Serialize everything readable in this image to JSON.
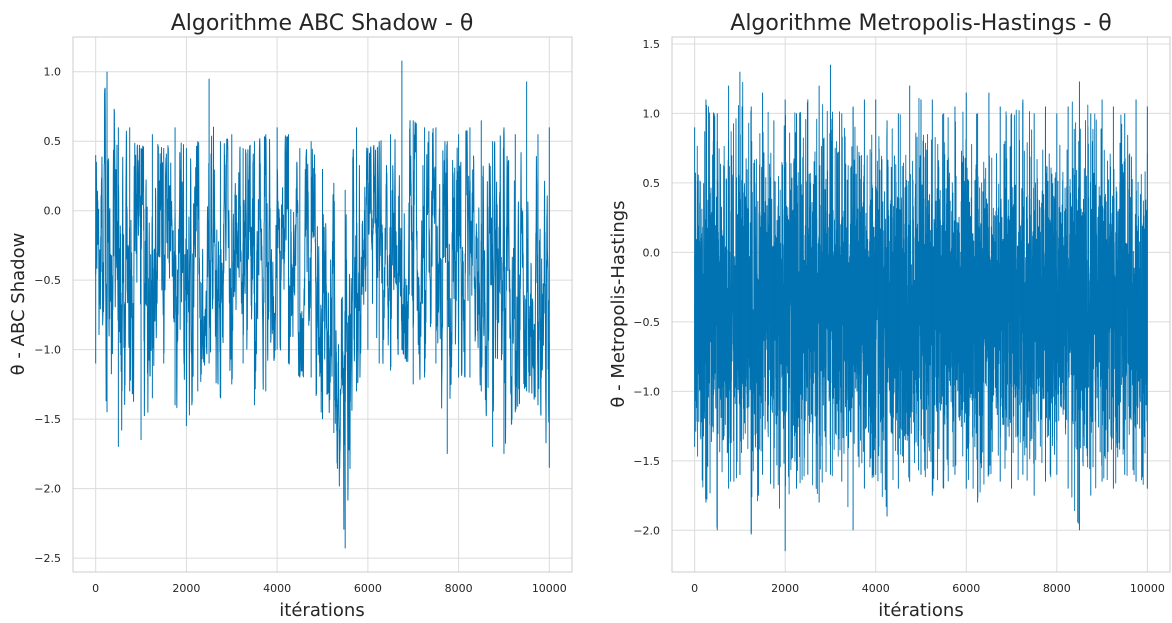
{
  "chart_data": [
    {
      "type": "line",
      "title": "Algorithme ABC Shadow - θ",
      "xlabel": "itérations",
      "ylabel": "θ - ABC Shadow",
      "xlim": [
        -500,
        10500
      ],
      "ylim": [
        -2.6,
        1.25
      ],
      "xticks": [
        0,
        2000,
        4000,
        6000,
        8000,
        10000
      ],
      "yticks": [
        -2.5,
        -2.0,
        -1.5,
        -1.0,
        -0.5,
        0.0,
        0.5,
        1.0
      ],
      "ytick_labels": [
        "−2.5",
        "−2.0",
        "−1.5",
        "−1.0",
        "−0.5",
        "0.0",
        "0.5",
        "1.0"
      ],
      "grid": true,
      "color": "#0173b2",
      "series": [
        {
          "x": [
            0,
            250,
            500,
            750,
            1000,
            1250,
            1500,
            1750,
            2000,
            2250,
            2500,
            2750,
            3000,
            3250,
            3500,
            3750,
            4000,
            4250,
            4500,
            4750,
            5000,
            5250,
            5500,
            5750,
            6000,
            6250,
            6500,
            6750,
            7000,
            7250,
            7500,
            7750,
            8000,
            8250,
            8500,
            8750,
            9000,
            9250,
            9500,
            9750,
            10000
          ],
          "y": [
            -0.3,
            -0.6,
            -0.4,
            -0.5,
            -0.2,
            -0.6,
            -0.3,
            -0.4,
            -0.5,
            -0.3,
            -0.2,
            -0.4,
            -0.3,
            -0.2,
            -0.4,
            -0.3,
            -0.1,
            -0.2,
            -0.3,
            -0.4,
            -0.6,
            -0.7,
            -0.8,
            -0.3,
            -0.2,
            -0.3,
            -0.4,
            -0.2,
            -0.3,
            -0.4,
            -0.3,
            -0.5,
            -0.3,
            -0.4,
            -0.5,
            -0.6,
            -0.7,
            -0.4,
            -0.5,
            -0.4,
            -0.6
          ],
          "ymin": [
            -1.1,
            -1.45,
            -1.7,
            -1.3,
            -1.65,
            -1.35,
            -1.1,
            -1.4,
            -1.55,
            -1.3,
            -1.1,
            -1.35,
            -1.25,
            -1.1,
            -1.4,
            -1.3,
            -1.0,
            -1.1,
            -1.2,
            -1.2,
            -1.5,
            -1.6,
            -2.43,
            -1.3,
            -1.0,
            -1.1,
            -1.15,
            -1.0,
            -1.25,
            -1.2,
            -1.1,
            -1.75,
            -1.2,
            -1.2,
            -1.3,
            -1.7,
            -1.75,
            -1.45,
            -1.3,
            -1.4,
            -1.85
          ],
          "ymax": [
            0.4,
            1.0,
            0.6,
            0.6,
            0.45,
            0.55,
            0.45,
            0.6,
            0.45,
            0.5,
            0.95,
            0.5,
            0.55,
            0.45,
            0.5,
            0.55,
            0.6,
            0.55,
            0.45,
            0.5,
            0.3,
            0.2,
            0.15,
            0.6,
            0.45,
            0.5,
            0.55,
            1.08,
            0.65,
            0.6,
            0.6,
            0.5,
            0.55,
            0.6,
            0.65,
            0.5,
            0.6,
            0.55,
            0.93,
            0.55,
            0.6
          ]
        }
      ]
    },
    {
      "type": "line",
      "title": "Algorithme Metropolis-Hastings - θ",
      "xlabel": "itérations",
      "ylabel": "θ - Metropolis-Hastings",
      "xlim": [
        -500,
        10500
      ],
      "ylim": [
        -2.3,
        1.55
      ],
      "xticks": [
        0,
        2000,
        4000,
        6000,
        8000,
        10000
      ],
      "yticks": [
        -2.0,
        -1.5,
        -1.0,
        -0.5,
        0.0,
        0.5,
        1.0,
        1.5
      ],
      "ytick_labels": [
        "−2.0",
        "−1.5",
        "−1.0",
        "−0.5",
        "0.0",
        "0.5",
        "1.0",
        "1.5"
      ],
      "grid": true,
      "color": "#0173b2",
      "series": [
        {
          "x": [
            0,
            250,
            500,
            750,
            1000,
            1250,
            1500,
            1750,
            2000,
            2250,
            2500,
            2750,
            3000,
            3250,
            3500,
            3750,
            4000,
            4250,
            4500,
            4750,
            5000,
            5250,
            5500,
            5750,
            6000,
            6250,
            6500,
            6750,
            7000,
            7250,
            7500,
            7750,
            8000,
            8250,
            8500,
            8750,
            9000,
            9250,
            9500,
            9750,
            10000
          ],
          "y": [
            -0.35,
            -0.4,
            -0.35,
            -0.4,
            -0.35,
            -0.4,
            -0.35,
            -0.4,
            -0.35,
            -0.4,
            -0.35,
            -0.4,
            -0.35,
            -0.4,
            -0.35,
            -0.4,
            -0.35,
            -0.4,
            -0.35,
            -0.4,
            -0.35,
            -0.4,
            -0.35,
            -0.4,
            -0.35,
            -0.4,
            -0.35,
            -0.4,
            -0.35,
            -0.4,
            -0.35,
            -0.4,
            -0.35,
            -0.4,
            -0.35,
            -0.4,
            -0.35,
            -0.4,
            -0.35,
            -0.4,
            -0.35
          ],
          "ymin": [
            -1.4,
            -1.8,
            -2.0,
            -1.7,
            -1.6,
            -2.03,
            -1.6,
            -1.7,
            -2.15,
            -1.7,
            -1.6,
            -1.8,
            -1.6,
            -1.65,
            -2.0,
            -1.7,
            -1.6,
            -1.9,
            -1.7,
            -1.65,
            -1.6,
            -1.75,
            -1.7,
            -1.6,
            -1.7,
            -1.8,
            -1.6,
            -1.65,
            -1.7,
            -1.6,
            -1.75,
            -1.65,
            -1.6,
            -1.7,
            -2.0,
            -1.75,
            -1.65,
            -1.7,
            -1.6,
            -1.65,
            -1.7
          ],
          "ymax": [
            0.9,
            1.1,
            1.0,
            1.2,
            1.3,
            1.05,
            1.15,
            0.95,
            1.1,
            1.0,
            1.1,
            1.2,
            1.35,
            1.0,
            1.05,
            1.1,
            1.1,
            0.95,
            1.0,
            1.2,
            1.1,
            1.1,
            1.0,
            1.05,
            1.15,
            1.0,
            1.15,
            1.05,
            1.0,
            1.1,
            1.0,
            1.05,
            1.0,
            1.05,
            1.23,
            1.0,
            1.1,
            1.05,
            1.0,
            1.1,
            1.05
          ]
        }
      ]
    }
  ]
}
